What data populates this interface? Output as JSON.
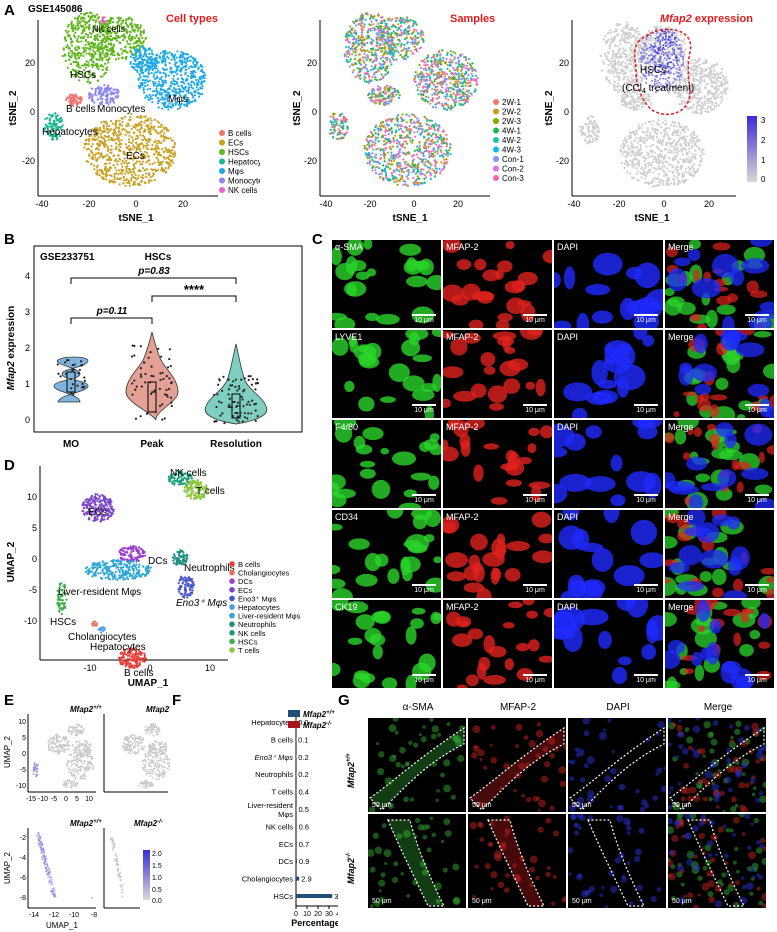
{
  "panels": {
    "A": "A",
    "B": "B",
    "C": "C",
    "D": "D",
    "E": "E",
    "F": "F",
    "G": "G"
  },
  "panel_a": {
    "dataset": "GSE145086",
    "plot1_title": "Cell types",
    "plot2_title": "Samples",
    "plot3_title_gene": "Mfap2",
    "plot3_title_rest": " expression",
    "xlabel": "tSNE_1",
    "ylabel": "tSNE_2",
    "xticks": [
      "-40",
      "-20",
      "0",
      "20"
    ],
    "yticks": [
      "20",
      "0",
      "-20"
    ],
    "cluster_labels": [
      "NK cells",
      "HSCs",
      "B cells",
      "Monocytes",
      "Mφs",
      "Hepatocytes",
      "ECs"
    ],
    "legend_celltypes": [
      {
        "label": "B cells",
        "color": "#f0756e"
      },
      {
        "label": "ECs",
        "color": "#c8a121"
      },
      {
        "label": "HSCs",
        "color": "#5fb51c"
      },
      {
        "label": "Hepatocytes",
        "color": "#16b88c"
      },
      {
        "label": "Mφs",
        "color": "#1ba9e6"
      },
      {
        "label": "Monocytes",
        "color": "#8d85f2"
      },
      {
        "label": "NK cells",
        "color": "#ef5fcf"
      }
    ],
    "legend_samples": [
      {
        "label": "2W-1",
        "color": "#f4766f"
      },
      {
        "label": "2W-2",
        "color": "#cc9a1d"
      },
      {
        "label": "2W-3",
        "color": "#7cae00"
      },
      {
        "label": "4W-1",
        "color": "#19b84b"
      },
      {
        "label": "4W-2",
        "color": "#1ec1a6"
      },
      {
        "label": "4W-3",
        "color": "#13b5e8"
      },
      {
        "label": "Con-1",
        "color": "#7b97f8"
      },
      {
        "label": "Con-2",
        "color": "#e56ced"
      },
      {
        "label": "Con-3",
        "color": "#fa62b5"
      }
    ],
    "annotation_line1": "HSCs",
    "annotation_line2": "(CCl",
    "annotation_line2_sub": "4",
    "annotation_line2_end": " treatment)",
    "colorbar_ticks": [
      "3",
      "2",
      "1",
      "0"
    ]
  },
  "panel_b": {
    "dataset": "GSE233751",
    "title": "HSCs",
    "ylabel_gene": "Mfap2",
    "ylabel_rest": " expression",
    "yticks": [
      "0",
      "1",
      "2",
      "3",
      "4"
    ],
    "p1": "p=0.11",
    "p2": "p=0.83",
    "sig": "****",
    "groups": [
      {
        "name": "MO",
        "color": "#6fa8d6"
      },
      {
        "name": "Peak",
        "color": "#df9385"
      },
      {
        "name": "Resolution",
        "color": "#6ec7b8"
      }
    ]
  },
  "panel_c": {
    "columns": [
      "α-SMA",
      "MFAP-2",
      "DAPI",
      "Merge"
    ],
    "row_markers": [
      "α-SMA",
      "LYVE1",
      "F4/80",
      "CD34",
      "CK19"
    ],
    "stain": "MFAP-2",
    "dapi": "DAPI",
    "merge": "Merge",
    "scale": "10 μm"
  },
  "panel_d": {
    "xlabel": "UMAP_1",
    "ylabel": "UMAP_2",
    "xticks": [
      "-10",
      "0",
      "10"
    ],
    "yticks": [
      "10",
      "5",
      "0",
      "-5",
      "-10"
    ],
    "cluster_labels": [
      "NK cells",
      "T cells",
      "ECs",
      "DCs",
      "Neutrophils",
      "Liver-resident Mφs",
      "Eno3⁺ Mφs",
      "HSCs",
      "Cholangiocytes",
      "Hepatocytes",
      "B cells"
    ],
    "legend": [
      {
        "label": "B cells",
        "color": "#e8413c"
      },
      {
        "label": "Cholangiocytes",
        "color": "#e7745a"
      },
      {
        "label": "DCs",
        "color": "#9b3fcf"
      },
      {
        "label": "ECs",
        "color": "#7d45c8"
      },
      {
        "label": "Eno3⁺ Mφs",
        "color": "#4a57c9"
      },
      {
        "label": "Hepatocytes",
        "color": "#4a9be0"
      },
      {
        "label": "Liver-resident Mφs",
        "color": "#2fa7d8"
      },
      {
        "label": "Neutrophils",
        "color": "#1b8d83"
      },
      {
        "label": "NK cells",
        "color": "#1c9e77"
      },
      {
        "label": "HSCs",
        "color": "#3fae4c"
      },
      {
        "label": "T cells",
        "color": "#8ac640"
      }
    ]
  },
  "panel_e": {
    "wt": "Mfap2",
    "wt_sup": "+/+",
    "ko": "Mfap2",
    "ko_sup": "-/-",
    "xlabel": "UMAP_1",
    "ylabel": "UMAP_2",
    "top_xticks": [
      "-15",
      "-10",
      "-5",
      "0",
      "5",
      "10"
    ],
    "top_yticks": [
      "10",
      "5",
      "0",
      "-5",
      "-10"
    ],
    "bottom_xticks": [
      "-14",
      "-12",
      "-10",
      "-8"
    ],
    "bottom_yticks": [
      "-2",
      "-4",
      "-6",
      "-8"
    ],
    "colorbar_ticks": [
      "2.0",
      "1.5",
      "1.0",
      "0.5",
      "0.0"
    ]
  },
  "panel_f": {
    "xlabel": "Percentage, %",
    "xticks": [
      "0",
      "10",
      "20",
      "30",
      "40"
    ],
    "legend": [
      {
        "label": "Mfap2",
        "sup": "+/+",
        "color": "#1f4e79"
      },
      {
        "label": "Mfap2",
        "sup": "-/-",
        "color": "#a9141b"
      }
    ]
  },
  "chart_data": {
    "type": "bar",
    "categories": [
      "Hepatocytes",
      "B cells",
      "Eno3⁺ Mφs",
      "Neutrophils",
      "T cells",
      "Liver-resident Mφs",
      "NK cells",
      "ECs",
      "DCs",
      "Cholangiocytes",
      "HSCs"
    ],
    "values": [
      0.0,
      0.1,
      0.2,
      0.2,
      0.4,
      0.5,
      0.6,
      0.7,
      0.9,
      2.9,
      32.9
    ],
    "value_labels": [
      "0.0",
      "0.1",
      "0.2",
      "0.2",
      "0.4",
      "0.5",
      "0.6",
      "0.7",
      "0.9",
      "2.9",
      "32.9"
    ],
    "xlabel": "Percentage, %",
    "xlim": [
      0,
      40
    ],
    "orientation": "horizontal"
  },
  "panel_g": {
    "columns": [
      "α-SMA",
      "MFAP-2",
      "DAPI",
      "Merge"
    ],
    "row1": "Mfap2",
    "row1_sup": "+/+",
    "row2": "Mfap2",
    "row2_sup": "-/-",
    "scale": "50 μm"
  }
}
